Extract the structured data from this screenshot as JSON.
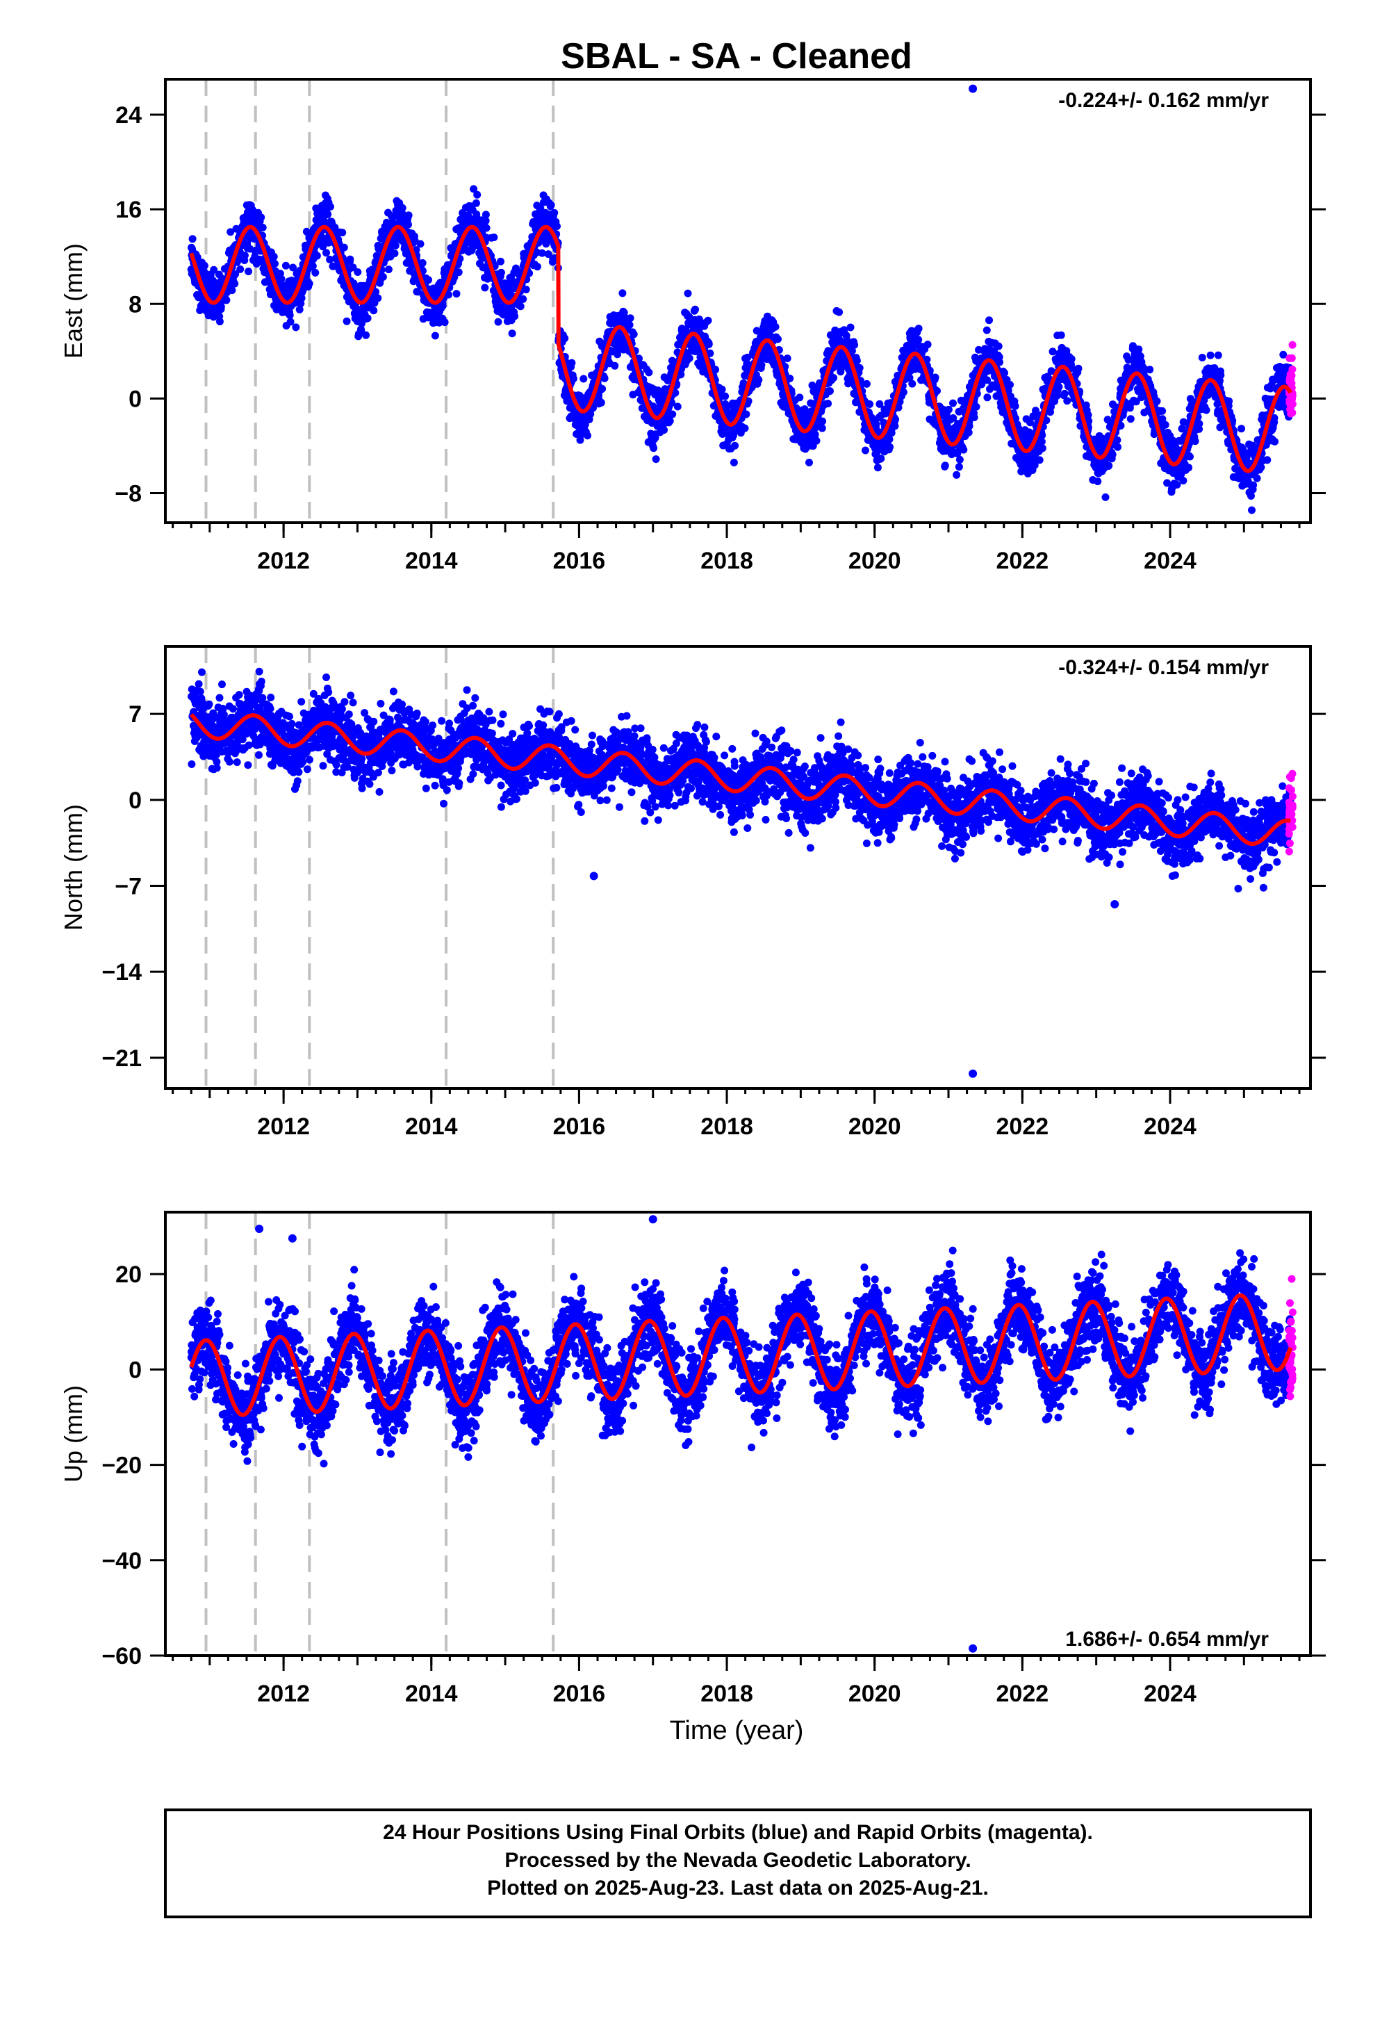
{
  "title": "SBAL  - SA - Cleaned",
  "xlabel": "Time (year)",
  "colors": {
    "final_orbits": "#0000ff",
    "rapid_orbits": "#ff00ff",
    "model": "#ff0000",
    "event_lines": "#c0c0c0"
  },
  "footer": {
    "line1": "24 Hour Positions Using Final Orbits (blue) and Rapid Orbits (magenta).",
    "line2": "Processed by the Nevada Geodetic Laboratory.",
    "line3": "Plotted on 2025-Aug-23. Last data on 2025-Aug-21."
  },
  "chart_data": [
    {
      "type": "scatter",
      "component": "east",
      "ylabel": "East (mm)",
      "rate_label": "-0.224+/- 0.162 mm/yr",
      "xlim": [
        2010.4,
        2025.9
      ],
      "ylim": [
        -10.5,
        27
      ],
      "yticks": [
        -8,
        0,
        8,
        16,
        24
      ],
      "xticks": [
        2012,
        2014,
        2016,
        2018,
        2020,
        2022,
        2024
      ],
      "event_lines": [
        2010.95,
        2011.62,
        2012.35,
        2014.2,
        2015.65
      ],
      "model": {
        "offset_before": 11.3,
        "offset_after": 2.8,
        "step_year": 2015.72,
        "trend_before": 0.0,
        "trend_after": -0.56,
        "amp_before": 3.2,
        "amp_after": 3.7,
        "period_years": 1.0,
        "phase_year_of_peak": 0.55,
        "scatter_std": 1.1,
        "start_year": 2010.75,
        "end_year": 2025.63
      },
      "outliers": [
        {
          "x": 2021.33,
          "y": 26.2
        }
      ]
    },
    {
      "type": "scatter",
      "component": "north",
      "ylabel": "North (mm)",
      "rate_label": "-0.324+/- 0.154 mm/yr",
      "xlim": [
        2010.4,
        2025.9
      ],
      "ylim": [
        -23.5,
        12.5
      ],
      "yticks": [
        -21,
        -14,
        -7,
        0,
        7
      ],
      "xticks": [
        2012,
        2014,
        2016,
        2018,
        2020,
        2022,
        2024
      ],
      "event_lines": [
        2010.95,
        2011.62,
        2012.35,
        2014.2,
        2015.65
      ],
      "model": {
        "start_value": 6.3,
        "end_value": -2.8,
        "amp": 1.1,
        "period_years": 1.0,
        "phase_year_of_peak": 0.6,
        "scatter_std": 1.3,
        "start_year": 2010.75,
        "end_year": 2025.63
      },
      "outliers": [
        {
          "x": 2021.33,
          "y": -22.3
        },
        {
          "x": 2016.2,
          "y": -6.2
        },
        {
          "x": 2023.25,
          "y": -8.5
        }
      ]
    },
    {
      "type": "scatter",
      "component": "up",
      "ylabel": "Up (mm)",
      "rate_label": "1.686+/- 0.654 mm/yr",
      "xlim": [
        2010.4,
        2025.9
      ],
      "ylim": [
        -60,
        33
      ],
      "yticks": [
        -60,
        -40,
        -20,
        0,
        20
      ],
      "xticks": [
        2012,
        2014,
        2016,
        2018,
        2020,
        2022,
        2024
      ],
      "event_lines": [
        2010.95,
        2011.62,
        2012.35,
        2014.2,
        2015.65
      ],
      "model": {
        "start_value": -2.0,
        "end_value": 8.0,
        "amp": 8.0,
        "period_years": 1.0,
        "phase_year_of_peak": 0.95,
        "scatter_std": 4.0,
        "start_year": 2010.75,
        "end_year": 2025.63
      },
      "outliers": [
        {
          "x": 2021.33,
          "y": -58.5
        },
        {
          "x": 2017.0,
          "y": 31.5
        },
        {
          "x": 2011.67,
          "y": 29.5
        },
        {
          "x": 2012.12,
          "y": 27.5
        }
      ]
    }
  ]
}
